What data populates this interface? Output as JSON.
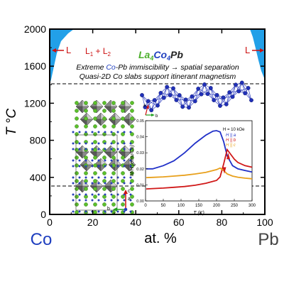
{
  "main_plot": {
    "y_axis_label": "T °C",
    "x_axis_label": "at. %",
    "left_element": "Co",
    "right_element": "Pb",
    "y_ticks": [
      "0",
      "400",
      "800",
      "1200",
      "1600",
      "2000"
    ],
    "x_ticks": [
      "0",
      "20",
      "40",
      "60",
      "80",
      "100"
    ],
    "colors": {
      "co": "#1f3fbf",
      "liquid": "#22a0e8",
      "arrow": "#cc1111",
      "dashed": "#000000"
    }
  },
  "labels": {
    "left_liquid": "L",
    "two_liquid": "L",
    "two_liquid_sub1": "1",
    "two_liquid_plus": " + L",
    "two_liquid_sub2": "2",
    "right_liquid": "L",
    "compound": {
      "la": "La",
      "la_sub": "4",
      "co": "Co",
      "co_sub": "4",
      "pb": "Pb",
      "colors": {
        "la": "#4caf2c",
        "co": "#1f3fbf",
        "pb": "#111111"
      }
    },
    "line1_pre": "Extreme ",
    "line1_co": "Co",
    "line1_post": "-Pb immiscibility → spatial separation",
    "line2": "Quasi-2D Co slabs support itinerant magnetism"
  },
  "structure": {
    "axis_c": "c",
    "axis_a": "a",
    "axis_b": "b"
  },
  "chain": {
    "axis_a": "a",
    "axis_b": "b"
  },
  "inset": {
    "ylabel": "M/H (emu/Co)",
    "xlabel": "T (K)",
    "legend_title": "H = 10 kOe",
    "legend_a": "H || a",
    "legend_b": "H || b",
    "legend_c": "H || c",
    "y_ticks": [
      "0.00",
      "0.01",
      "0.02",
      "0.03",
      "0.04",
      "0.05"
    ],
    "x_ticks": [
      "0",
      "50",
      "100",
      "150",
      "200",
      "250",
      "300"
    ]
  },
  "chart_data": {
    "type": "line",
    "title": "",
    "xlabel": "T (K)",
    "ylabel": "M/H (emu/Co)",
    "xlim": [
      0,
      300
    ],
    "ylim": [
      0,
      0.05
    ],
    "series": [
      {
        "name": "H || a",
        "color": "#2030c8",
        "x": [
          2,
          20,
          50,
          80,
          110,
          140,
          170,
          190,
          200,
          210,
          220,
          230,
          245,
          260,
          280,
          300
        ],
        "y": [
          0.02,
          0.02,
          0.022,
          0.025,
          0.03,
          0.036,
          0.041,
          0.0435,
          0.0438,
          0.043,
          0.037,
          0.028,
          0.022,
          0.02,
          0.019,
          0.018
        ]
      },
      {
        "name": "H || b",
        "color": "#d01818",
        "x": [
          2,
          20,
          50,
          80,
          110,
          140,
          170,
          200,
          210,
          220,
          230,
          240,
          250,
          260,
          280,
          300
        ],
        "y": [
          0.0075,
          0.0077,
          0.008,
          0.0085,
          0.009,
          0.0098,
          0.011,
          0.0128,
          0.015,
          0.023,
          0.032,
          0.029,
          0.026,
          0.024,
          0.022,
          0.021
        ]
      },
      {
        "name": "H || c",
        "color": "#e8a01c",
        "x": [
          2,
          20,
          50,
          80,
          110,
          140,
          170,
          200,
          210,
          220,
          230,
          245,
          260,
          280,
          300
        ],
        "y": [
          0.0145,
          0.0147,
          0.015,
          0.0155,
          0.016,
          0.0168,
          0.0178,
          0.0195,
          0.0205,
          0.019,
          0.0168,
          0.0155,
          0.0148,
          0.0142,
          0.0138
        ]
      }
    ]
  }
}
